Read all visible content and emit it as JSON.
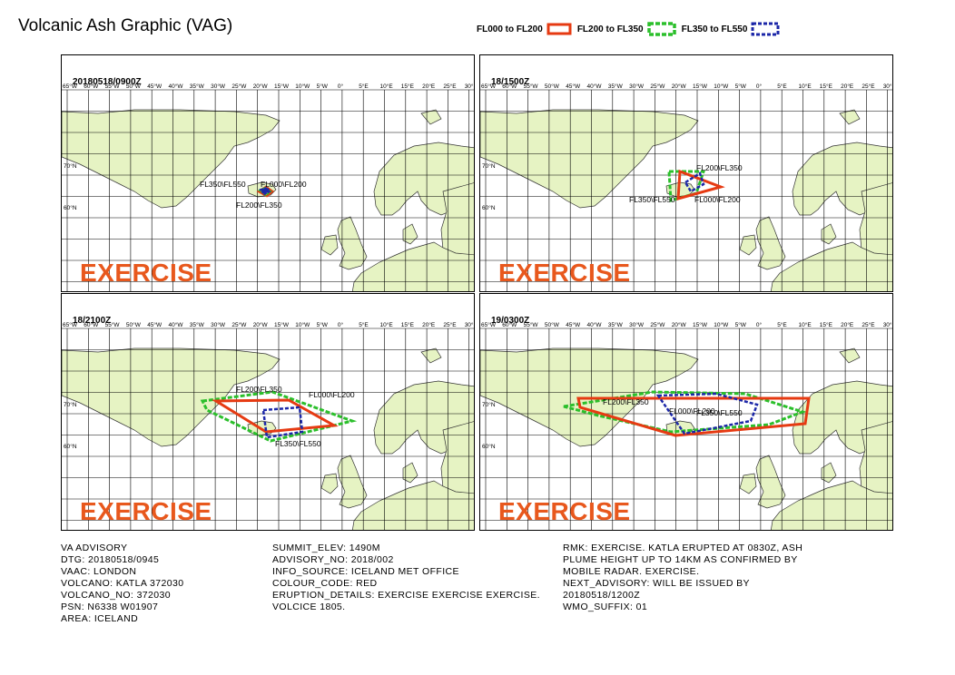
{
  "title": "Volcanic Ash Graphic (VAG)",
  "legend": [
    {
      "label": "FL000 to FL200",
      "color": "#e63a12"
    },
    {
      "label": "FL200 to FL350",
      "color": "#2bbf2b"
    },
    {
      "label": "FL350 to FL550",
      "color": "#1c27a8"
    }
  ],
  "longitude_labels": [
    "65°W",
    "60°W",
    "55°W",
    "50°W",
    "45°W",
    "40°W",
    "35°W",
    "30°W",
    "25°W",
    "20°W",
    "15°W",
    "10°W",
    "5°W",
    "0°",
    "5°E",
    "10°E",
    "15°E",
    "20°E",
    "25°E",
    "30°E"
  ],
  "latitude_labels": [
    "70°N",
    "60°N"
  ],
  "watermark": "EXERCISE",
  "colors": {
    "land": "#e6f3c3",
    "sea": "#ffffff",
    "grid": "#000000",
    "watermark": "#e8581d"
  },
  "panels": [
    {
      "time": "20180518/0900Z",
      "labels": [
        "FL350\\FL550",
        "FL000\\FL200",
        "FL200\\FL350"
      ]
    },
    {
      "time": "18/1500Z",
      "labels": [
        "FL200\\FL350",
        "FL350\\FL550",
        "FL000\\FL200"
      ]
    },
    {
      "time": "18/2100Z",
      "labels": [
        "FL200\\FL350",
        "FL000\\FL200",
        "FL350\\FL550"
      ]
    },
    {
      "time": "19/0300Z",
      "labels": [
        "FL200\\FL350",
        "FL000\\FL200",
        "FL350\\FL550"
      ]
    }
  ],
  "advisory": {
    "col1": [
      "VA ADVISORY",
      "DTG: 20180518/0945",
      "VAAC: LONDON",
      "VOLCANO: KATLA 372030",
      "VOLCANO_NO: 372030",
      "PSN: N6338 W01907",
      "AREA: ICELAND"
    ],
    "col2": [
      "SUMMIT_ELEV: 1490M",
      "ADVISORY_NO: 2018/002",
      "INFO_SOURCE: ICELAND MET OFFICE",
      "COLOUR_CODE: RED",
      "ERUPTION_DETAILS: EXERCISE EXERCISE EXERCISE.",
      "VOLCICE 1805."
    ],
    "col3": [
      "RMK: EXERCISE. KATLA ERUPTED AT 0830Z, ASH",
      "PLUME HEIGHT UP TO 14KM AS CONFIRMED BY",
      "MOBILE RADAR. EXERCISE.",
      "NEXT_ADVISORY: WILL BE ISSUED BY",
      "20180518/1200Z",
      "WMO_SUFFIX: 01"
    ]
  }
}
